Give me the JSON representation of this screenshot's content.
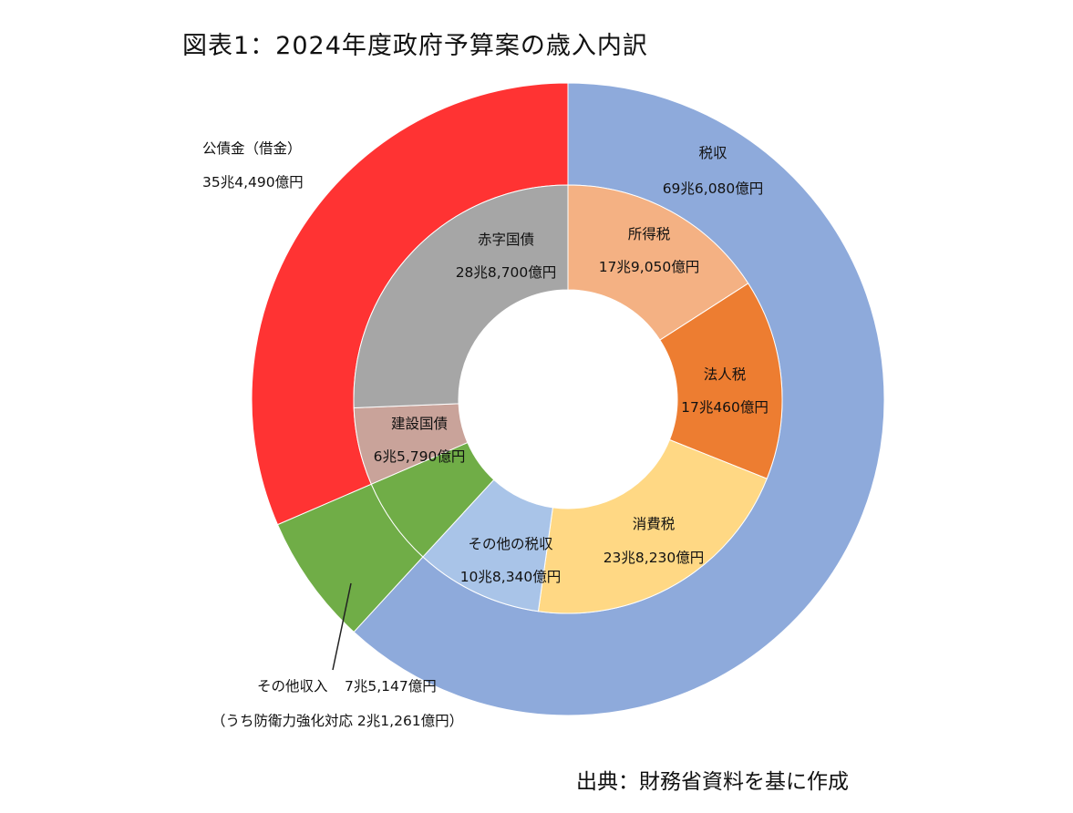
{
  "title": "図表1：2024年度政府予算案の歳入内訳",
  "source": "出典：財務省資料を基に作成",
  "chart_data": {
    "type": "pie",
    "unit": "億円",
    "outer_ring": [
      {
        "name": "税収",
        "value": 696080,
        "label_value": "69兆6,080億円",
        "color": "#8eaadb"
      },
      {
        "name": "その他収入",
        "value": 75147,
        "label_value": "7兆5,147億円",
        "note": "（うち防衛力強化対応 2兆1,261億円）",
        "color": "#70ad47"
      },
      {
        "name": "公債金（借金）",
        "value": 354490,
        "label_value": "35兆4,490億円",
        "color": "#ff3333"
      }
    ],
    "inner_ring": [
      {
        "name": "所得税",
        "value": 179050,
        "label_value": "17兆9,050億円",
        "color": "#f4b183"
      },
      {
        "name": "法人税",
        "value": 170460,
        "label_value": "17兆460億円",
        "color": "#ed7d31"
      },
      {
        "name": "消費税",
        "value": 238230,
        "label_value": "23兆8,230億円",
        "color": "#ffd884"
      },
      {
        "name": "その他の税収",
        "value": 108340,
        "label_value": "10兆8,340億円",
        "color": "#a9c4e8"
      },
      {
        "name": "",
        "value": 75147,
        "label_value": "",
        "color": "#70ad47"
      },
      {
        "name": "建設国債",
        "value": 65790,
        "label_value": "6兆5,790億円",
        "color": "#c9a39a"
      },
      {
        "name": "赤字国債",
        "value": 288700,
        "label_value": "28兆8,700億円",
        "color": "#a6a6a6"
      }
    ]
  }
}
